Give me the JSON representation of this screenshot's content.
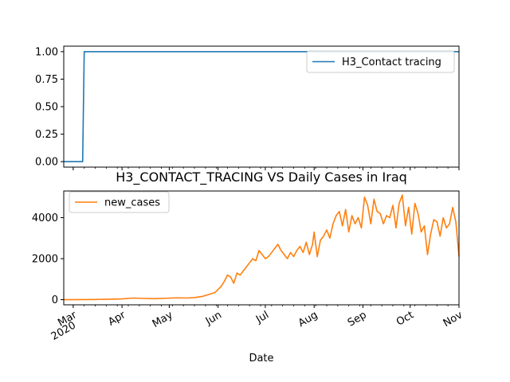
{
  "title": "H3_CONTACT_TRACING VS Daily Cases in Iraq",
  "xlabel": "Date",
  "chart_data": [
    {
      "type": "line",
      "panel": "top",
      "ylim": [
        -0.05,
        1.05
      ],
      "y_ticks": [
        0.0,
        0.25,
        0.5,
        0.75,
        1.0
      ],
      "y_tick_labels": [
        "0.00",
        "0.25",
        "0.50",
        "0.75",
        "1.00"
      ],
      "legend_position": "top-right",
      "series": [
        {
          "name": "H3_Contact tracing",
          "color": "#1f77b4",
          "x": [
            "2020-02-24",
            "2020-03-07",
            "2020-03-08",
            "2020-11-01"
          ],
          "y": [
            0,
            0,
            1,
            1
          ]
        }
      ]
    },
    {
      "type": "line",
      "panel": "bottom",
      "ylim": [
        -250,
        5300
      ],
      "y_ticks": [
        0,
        2000,
        4000
      ],
      "y_tick_labels": [
        "0",
        "2000",
        "4000"
      ],
      "legend_position": "top-left",
      "x_range": [
        "2020-02-24",
        "2020-11-01"
      ],
      "x_ticks": [
        "2020-03-01",
        "2020-04-01",
        "2020-05-01",
        "2020-06-01",
        "2020-07-01",
        "2020-08-01",
        "2020-09-01",
        "2020-10-01",
        "2020-11-01"
      ],
      "x_tick_labels": [
        {
          "month": "Mar",
          "year": "2020"
        },
        {
          "month": "Apr",
          "year": ""
        },
        {
          "month": "May",
          "year": ""
        },
        {
          "month": "Jun",
          "year": ""
        },
        {
          "month": "Jul",
          "year": ""
        },
        {
          "month": "Aug",
          "year": ""
        },
        {
          "month": "Sep",
          "year": ""
        },
        {
          "month": "Oct",
          "year": ""
        },
        {
          "month": "Nov",
          "year": ""
        }
      ],
      "series": [
        {
          "name": "new_cases",
          "color": "#ff7f0e",
          "x": [
            "2020-02-24",
            "2020-03-05",
            "2020-03-15",
            "2020-03-25",
            "2020-04-01",
            "2020-04-08",
            "2020-04-15",
            "2020-04-22",
            "2020-04-29",
            "2020-05-06",
            "2020-05-13",
            "2020-05-18",
            "2020-05-22",
            "2020-05-26",
            "2020-05-28",
            "2020-05-30",
            "2020-06-01",
            "2020-06-03",
            "2020-06-05",
            "2020-06-07",
            "2020-06-09",
            "2020-06-11",
            "2020-06-13",
            "2020-06-15",
            "2020-06-17",
            "2020-06-19",
            "2020-06-21",
            "2020-06-23",
            "2020-06-25",
            "2020-06-27",
            "2020-06-29",
            "2020-07-01",
            "2020-07-03",
            "2020-07-05",
            "2020-07-07",
            "2020-07-09",
            "2020-07-11",
            "2020-07-13",
            "2020-07-15",
            "2020-07-17",
            "2020-07-19",
            "2020-07-21",
            "2020-07-23",
            "2020-07-25",
            "2020-07-27",
            "2020-07-29",
            "2020-07-31",
            "2020-08-01",
            "2020-08-03",
            "2020-08-05",
            "2020-08-07",
            "2020-08-09",
            "2020-08-11",
            "2020-08-13",
            "2020-08-15",
            "2020-08-17",
            "2020-08-19",
            "2020-08-21",
            "2020-08-23",
            "2020-08-25",
            "2020-08-27",
            "2020-08-29",
            "2020-08-31",
            "2020-09-02",
            "2020-09-04",
            "2020-09-06",
            "2020-09-08",
            "2020-09-10",
            "2020-09-12",
            "2020-09-14",
            "2020-09-16",
            "2020-09-18",
            "2020-09-20",
            "2020-09-22",
            "2020-09-24",
            "2020-09-26",
            "2020-09-28",
            "2020-09-30",
            "2020-10-02",
            "2020-10-04",
            "2020-10-06",
            "2020-10-08",
            "2020-10-10",
            "2020-10-12",
            "2020-10-14",
            "2020-10-16",
            "2020-10-18",
            "2020-10-20",
            "2020-10-22",
            "2020-10-24",
            "2020-10-26",
            "2020-10-28",
            "2020-10-30",
            "2020-11-01"
          ],
          "y": [
            0,
            5,
            10,
            25,
            40,
            80,
            60,
            50,
            70,
            90,
            80,
            110,
            160,
            250,
            300,
            350,
            500,
            650,
            900,
            1200,
            1100,
            800,
            1300,
            1200,
            1400,
            1600,
            1800,
            2000,
            1900,
            2400,
            2200,
            2000,
            2100,
            2300,
            2500,
            2700,
            2400,
            2200,
            2000,
            2300,
            2100,
            2400,
            2600,
            2300,
            2800,
            2200,
            2700,
            3300,
            2100,
            2900,
            3100,
            3400,
            3000,
            3700,
            4100,
            4300,
            3600,
            4400,
            3300,
            4100,
            3700,
            4000,
            3500,
            5000,
            4600,
            3700,
            4900,
            4300,
            4200,
            3700,
            4100,
            4000,
            4600,
            3500,
            4700,
            5100,
            3600,
            4500,
            3200,
            4700,
            4200,
            3300,
            3600,
            2200,
            3200,
            3900,
            3800,
            3100,
            4000,
            3500,
            3700,
            4500,
            3800,
            2100
          ]
        }
      ]
    }
  ]
}
